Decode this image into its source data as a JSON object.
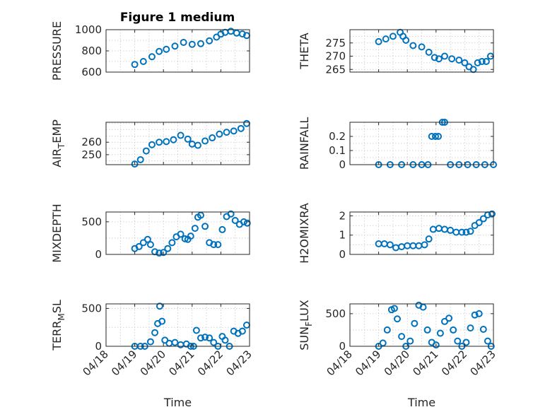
{
  "figure_title": "Figure 1 medium",
  "colors": {
    "marker": "#0072BD",
    "axes": "#262626",
    "grid": "#c8c8c8"
  },
  "chart_data": [
    {
      "type": "scatter",
      "ylabel": "PRESSURE",
      "ylim": [
        600,
        1000
      ],
      "yticks": [
        600,
        800,
        1000
      ],
      "ytick_labels": [
        "600",
        "800",
        "1000"
      ],
      "xlim": [
        18,
        23
      ],
      "grid": true,
      "x": [
        19.0,
        19.3,
        19.6,
        19.85,
        20.1,
        20.4,
        20.7,
        21.0,
        21.3,
        21.6,
        21.85,
        22.0,
        22.15,
        22.35,
        22.55,
        22.75,
        22.9
      ],
      "y": [
        672,
        700,
        745,
        795,
        815,
        845,
        880,
        862,
        868,
        895,
        930,
        958,
        975,
        985,
        968,
        960,
        945
      ]
    },
    {
      "type": "scatter",
      "ylabel": "THETA",
      "ylim": [
        264,
        280
      ],
      "yticks": [
        265,
        270,
        275
      ],
      "ytick_labels": [
        "265",
        "270",
        "275"
      ],
      "xlim": [
        18,
        23
      ],
      "grid": true,
      "x": [
        19.0,
        19.25,
        19.5,
        19.75,
        19.85,
        19.95,
        20.2,
        20.5,
        20.75,
        20.95,
        21.1,
        21.3,
        21.55,
        21.8,
        22.0,
        22.15,
        22.3,
        22.45,
        22.6,
        22.75,
        22.9
      ],
      "y": [
        275.5,
        276.5,
        277.5,
        279,
        277.5,
        276,
        274,
        273.5,
        271.5,
        269.5,
        269,
        270,
        269,
        268.5,
        267.5,
        266,
        265,
        267.5,
        268,
        268,
        270
      ]
    },
    {
      "type": "scatter",
      "ylabel": "AIR_TEMP",
      "ylim": [
        242,
        276
      ],
      "yticks": [
        250,
        260
      ],
      "ytick_labels": [
        "250",
        "260"
      ],
      "xlim": [
        18,
        23
      ],
      "grid": true,
      "x": [
        19.0,
        19.2,
        19.4,
        19.6,
        19.85,
        20.1,
        20.35,
        20.6,
        20.85,
        21.0,
        21.2,
        21.45,
        21.7,
        21.95,
        22.2,
        22.45,
        22.7,
        22.9
      ],
      "y": [
        242.5,
        246,
        253,
        258,
        260,
        260.5,
        262,
        265.5,
        262.5,
        258.5,
        257.5,
        261,
        263.5,
        266.5,
        268,
        269,
        271,
        275
      ]
    },
    {
      "type": "scatter",
      "ylabel": "RAINFALL",
      "ylim": [
        0,
        0.3
      ],
      "yticks": [
        0,
        0.1,
        0.2
      ],
      "ytick_labels": [
        "0",
        "0.1",
        "0.2"
      ],
      "xlim": [
        18,
        23
      ],
      "grid": true,
      "x": [
        19.0,
        19.4,
        19.8,
        20.2,
        20.5,
        20.72,
        20.85,
        20.98,
        21.08,
        21.22,
        21.3,
        21.5,
        21.8,
        22.1,
        22.4,
        22.7,
        23.0
      ],
      "y": [
        0,
        0,
        0,
        0,
        0,
        0,
        0.2,
        0.2,
        0.2,
        0.3,
        0.3,
        0,
        0,
        0,
        0,
        0,
        0
      ]
    },
    {
      "type": "scatter",
      "ylabel": "MIXDEPTH",
      "ylim": [
        0,
        650
      ],
      "yticks": [
        0,
        500
      ],
      "ytick_labels": [
        "0",
        "500"
      ],
      "xlim": [
        18,
        23
      ],
      "grid": true,
      "x": [
        19.0,
        19.15,
        19.3,
        19.45,
        19.55,
        19.7,
        19.85,
        20.0,
        20.15,
        20.3,
        20.45,
        20.6,
        20.75,
        20.85,
        20.95,
        21.1,
        21.2,
        21.3,
        21.45,
        21.6,
        21.75,
        21.9,
        22.05,
        22.2,
        22.35,
        22.5,
        22.65,
        22.8,
        22.92
      ],
      "y": [
        90,
        120,
        180,
        230,
        150,
        40,
        20,
        30,
        90,
        180,
        270,
        310,
        240,
        230,
        280,
        400,
        570,
        600,
        430,
        180,
        150,
        150,
        380,
        580,
        620,
        520,
        460,
        500,
        480
      ]
    },
    {
      "type": "scatter",
      "ylabel": "H2OMIXRA",
      "ylim": [
        0,
        2.2
      ],
      "yticks": [
        0,
        1,
        2
      ],
      "ytick_labels": [
        "0",
        "1",
        "2"
      ],
      "xlim": [
        18,
        23
      ],
      "grid": true,
      "x": [
        19.0,
        19.2,
        19.4,
        19.6,
        19.8,
        20.0,
        20.2,
        20.4,
        20.6,
        20.75,
        20.9,
        21.1,
        21.3,
        21.5,
        21.7,
        21.9,
        22.05,
        22.2,
        22.35,
        22.5,
        22.65,
        22.8,
        22.95
      ],
      "y": [
        0.55,
        0.55,
        0.5,
        0.35,
        0.4,
        0.45,
        0.45,
        0.45,
        0.5,
        0.8,
        1.3,
        1.35,
        1.3,
        1.25,
        1.15,
        1.15,
        1.15,
        1.2,
        1.5,
        1.65,
        1.85,
        2.05,
        2.1
      ]
    },
    {
      "type": "scatter",
      "ylabel": "TERR_MSL",
      "ylim": [
        0,
        560
      ],
      "yticks": [
        0,
        500
      ],
      "ytick_labels": [
        "0",
        "500"
      ],
      "xlim": [
        18,
        23
      ],
      "grid": true,
      "x": [
        19.0,
        19.2,
        19.35,
        19.55,
        19.7,
        19.8,
        19.87,
        19.95,
        20.05,
        20.2,
        20.4,
        20.6,
        20.8,
        20.95,
        21.05,
        21.15,
        21.3,
        21.45,
        21.6,
        21.75,
        21.9,
        22.05,
        22.15,
        22.3,
        22.45,
        22.6,
        22.75,
        22.9
      ],
      "y": [
        0,
        0,
        0,
        60,
        180,
        300,
        530,
        330,
        80,
        40,
        50,
        20,
        30,
        0,
        0,
        210,
        110,
        120,
        110,
        50,
        0,
        130,
        80,
        0,
        200,
        170,
        200,
        280
      ]
    },
    {
      "type": "scatter",
      "ylabel": "SUN_FLUX",
      "ylim": [
        0,
        650
      ],
      "yticks": [
        0,
        500
      ],
      "ytick_labels": [
        "0",
        "500"
      ],
      "xlim": [
        18,
        23
      ],
      "grid": true,
      "x": [
        19.0,
        19.15,
        19.3,
        19.45,
        19.55,
        19.65,
        19.8,
        19.95,
        20.1,
        20.25,
        20.4,
        20.55,
        20.7,
        20.85,
        21.0,
        21.15,
        21.3,
        21.45,
        21.6,
        21.75,
        21.9,
        22.05,
        22.2,
        22.35,
        22.5,
        22.65,
        22.8,
        22.92
      ],
      "y": [
        0,
        50,
        250,
        560,
        580,
        420,
        150,
        0,
        80,
        350,
        630,
        600,
        250,
        60,
        20,
        200,
        380,
        430,
        250,
        80,
        0,
        60,
        280,
        480,
        500,
        260,
        80,
        0
      ]
    }
  ],
  "x_axis": {
    "label": "Time",
    "ticks": [
      18,
      19,
      20,
      21,
      22,
      23
    ],
    "tick_labels": [
      "04/18",
      "04/19",
      "04/20",
      "04/21",
      "04/22",
      "04/23"
    ]
  }
}
